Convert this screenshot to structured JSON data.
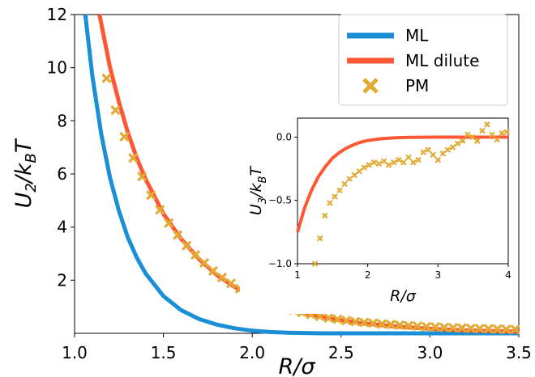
{
  "chart_data": [
    {
      "type": "line",
      "panel": "main",
      "xlabel": "R/σ",
      "ylabel": "U2/kBT",
      "xlim": [
        1.0,
        3.5
      ],
      "ylim": [
        0,
        12
      ],
      "xticks": [
        "1.0",
        "1.5",
        "2.0",
        "2.5",
        "3.0",
        "3.5"
      ],
      "yticks": [
        "2",
        "4",
        "6",
        "8",
        "10",
        "12"
      ],
      "grid": false,
      "legend_position": "top-right",
      "colors": {
        "ML": "#1a8fd6",
        "ML dilute": "#ff5733",
        "PM": "#e0aa33"
      },
      "series": [
        {
          "name": "ML",
          "style": "line",
          "x": [
            1.06,
            1.1,
            1.15,
            1.2,
            1.25,
            1.3,
            1.35,
            1.4,
            1.5,
            1.6,
            1.7,
            1.8,
            1.9,
            2.0,
            2.1,
            2.2,
            2.4,
            2.6,
            2.8,
            3.0,
            3.5
          ],
          "y": [
            12.0,
            9.7,
            7.5,
            5.85,
            4.6,
            3.6,
            2.85,
            2.25,
            1.4,
            0.87,
            0.54,
            0.33,
            0.19,
            0.1,
            0.05,
            0.02,
            0.0,
            0.0,
            0.0,
            0.0,
            0.0
          ]
        },
        {
          "name": "ML dilute",
          "style": "line",
          "x": [
            1.14,
            1.2,
            1.25,
            1.3,
            1.35,
            1.4,
            1.5,
            1.6,
            1.7,
            1.8,
            1.9,
            2.0,
            2.1,
            2.2,
            2.3,
            2.4,
            2.6,
            2.8,
            3.0,
            3.2,
            3.5
          ],
          "y": [
            12.0,
            10.0,
            8.7,
            7.55,
            6.6,
            5.8,
            4.5,
            3.55,
            2.8,
            2.2,
            1.75,
            1.4,
            1.13,
            0.91,
            0.73,
            0.59,
            0.39,
            0.26,
            0.17,
            0.11,
            0.06
          ]
        },
        {
          "name": "PM",
          "style": "scatter",
          "x": [
            1.18,
            1.23,
            1.28,
            1.33,
            1.38,
            1.43,
            1.48,
            1.53,
            1.58,
            1.63,
            1.68,
            1.73,
            1.78,
            1.83,
            1.88,
            1.93,
            1.98,
            2.03,
            2.08,
            2.13,
            2.18,
            2.23,
            2.28,
            2.33,
            2.38,
            2.43,
            2.48,
            2.53,
            2.58,
            2.63,
            2.68,
            2.73,
            2.78,
            2.83,
            2.88,
            2.93,
            2.98,
            3.03,
            3.08,
            3.13,
            3.18,
            3.23,
            3.28,
            3.33,
            3.38,
            3.43,
            3.48
          ],
          "y": [
            9.6,
            8.4,
            7.4,
            6.6,
            5.9,
            5.2,
            4.65,
            4.15,
            3.7,
            3.3,
            2.95,
            2.65,
            2.35,
            2.1,
            1.88,
            1.68,
            1.5,
            1.34,
            1.2,
            1.08,
            0.97,
            0.87,
            0.79,
            0.71,
            0.64,
            0.58,
            0.53,
            0.48,
            0.44,
            0.41,
            0.38,
            0.35,
            0.33,
            0.31,
            0.29,
            0.27,
            0.25,
            0.24,
            0.22,
            0.21,
            0.2,
            0.19,
            0.18,
            0.17,
            0.16,
            0.15,
            0.15
          ]
        }
      ]
    },
    {
      "type": "line",
      "panel": "inset",
      "xlabel": "R/σ",
      "ylabel": "U3/kBT",
      "xlim": [
        1,
        4
      ],
      "ylim": [
        -1.0,
        0.15
      ],
      "xticks": [
        "1",
        "2",
        "3",
        "4"
      ],
      "yticks": [
        "0.0",
        "−0.5",
        "−1.0"
      ],
      "grid": false,
      "series": [
        {
          "name": "ML dilute",
          "style": "line",
          "x": [
            1.0,
            1.1,
            1.2,
            1.3,
            1.4,
            1.5,
            1.6,
            1.7,
            1.8,
            1.9,
            2.0,
            2.2,
            2.4,
            2.6,
            2.8,
            3.0,
            3.5,
            4.0
          ],
          "y": [
            -0.75,
            -0.56,
            -0.42,
            -0.31,
            -0.23,
            -0.165,
            -0.12,
            -0.085,
            -0.06,
            -0.04,
            -0.027,
            -0.012,
            -0.005,
            -0.002,
            -0.001,
            0.0,
            0.0,
            0.0
          ],
          "color": "#ff5733"
        },
        {
          "name": "PM",
          "style": "scatter",
          "x": [
            1.25,
            1.32,
            1.39,
            1.46,
            1.53,
            1.6,
            1.67,
            1.74,
            1.81,
            1.88,
            1.95,
            2.02,
            2.09,
            2.16,
            2.23,
            2.3,
            2.37,
            2.44,
            2.51,
            2.58,
            2.65,
            2.72,
            2.79,
            2.86,
            2.93,
            3.0,
            3.07,
            3.14,
            3.21,
            3.28,
            3.35,
            3.42,
            3.49,
            3.56,
            3.63,
            3.7,
            3.77,
            3.84,
            3.91,
            3.98
          ],
          "y": [
            -1.0,
            -0.8,
            -0.62,
            -0.52,
            -0.47,
            -0.42,
            -0.37,
            -0.33,
            -0.3,
            -0.27,
            -0.24,
            -0.22,
            -0.2,
            -0.21,
            -0.19,
            -0.22,
            -0.2,
            -0.18,
            -0.2,
            -0.16,
            -0.2,
            -0.18,
            -0.12,
            -0.1,
            -0.14,
            -0.18,
            -0.13,
            -0.1,
            -0.08,
            -0.05,
            -0.03,
            0.02,
            0.0,
            -0.03,
            0.05,
            0.1,
            0.02,
            -0.02,
            0.03,
            0.04
          ],
          "color": "#e0aa33"
        }
      ]
    }
  ]
}
